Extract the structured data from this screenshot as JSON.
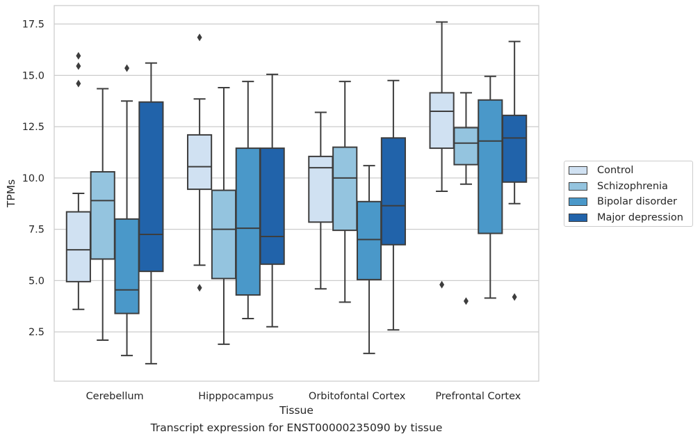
{
  "chart_data": {
    "type": "box",
    "title": "",
    "caption": "Transcript expression for ENST00000235090 by tissue",
    "xlabel": "Tissue",
    "ylabel": "TPMs",
    "ylim": [
      0.1,
      18.4
    ],
    "yticks": [
      "2.5",
      "5.0",
      "7.5",
      "10.0",
      "12.5",
      "15.0",
      "17.5"
    ],
    "ytick_values": [
      2.5,
      5.0,
      7.5,
      10.0,
      12.5,
      15.0,
      17.5
    ],
    "grid": "horizontal",
    "legend_position": "right",
    "categories": [
      "Cerebellum",
      "Hipppocampus",
      "Orbitofontal Cortex",
      "Prefrontal Cortex"
    ],
    "series": [
      {
        "name": "Control",
        "color": "#d0e1f2",
        "boxes": [
          {
            "whislo": 3.6,
            "q1": 4.95,
            "med": 6.5,
            "q3": 8.35,
            "whishi": 9.25,
            "fliers": [
              14.6,
              15.45,
              15.95
            ]
          },
          {
            "whislo": 5.75,
            "q1": 9.45,
            "med": 10.55,
            "q3": 12.1,
            "whishi": 13.85,
            "fliers": [
              4.65,
              16.85
            ]
          },
          {
            "whislo": 4.6,
            "q1": 7.85,
            "med": 10.5,
            "q3": 11.05,
            "whishi": 13.2,
            "fliers": []
          },
          {
            "whislo": 9.35,
            "q1": 11.45,
            "med": 13.25,
            "q3": 14.15,
            "whishi": 17.6,
            "fliers": [
              4.8
            ]
          }
        ]
      },
      {
        "name": "Schizophrenia",
        "color": "#94c4df",
        "boxes": [
          {
            "whislo": 2.1,
            "q1": 6.05,
            "med": 8.9,
            "q3": 10.3,
            "whishi": 14.35,
            "fliers": []
          },
          {
            "whislo": 1.9,
            "q1": 5.1,
            "med": 7.5,
            "q3": 9.4,
            "whishi": 14.4,
            "fliers": []
          },
          {
            "whislo": 3.95,
            "q1": 7.45,
            "med": 10.0,
            "q3": 11.5,
            "whishi": 14.7,
            "fliers": []
          },
          {
            "whislo": 9.7,
            "q1": 10.65,
            "med": 11.7,
            "q3": 12.45,
            "whishi": 14.15,
            "fliers": [
              4.0
            ]
          }
        ]
      },
      {
        "name": "Bipolar disorder",
        "color": "#4a98c9",
        "boxes": [
          {
            "whislo": 1.35,
            "q1": 3.4,
            "med": 4.55,
            "q3": 8.0,
            "whishi": 13.75,
            "fliers": [
              15.35
            ]
          },
          {
            "whislo": 3.15,
            "q1": 4.3,
            "med": 7.55,
            "q3": 11.45,
            "whishi": 14.7,
            "fliers": []
          },
          {
            "whislo": 1.45,
            "q1": 5.05,
            "med": 7.0,
            "q3": 8.85,
            "whishi": 10.6,
            "fliers": []
          },
          {
            "whislo": 4.15,
            "q1": 7.3,
            "med": 11.8,
            "q3": 13.8,
            "whishi": 14.95,
            "fliers": []
          }
        ]
      },
      {
        "name": "Major depression",
        "color": "#2163aa",
        "boxes": [
          {
            "whislo": 0.95,
            "q1": 5.45,
            "med": 7.25,
            "q3": 13.7,
            "whishi": 15.6,
            "fliers": []
          },
          {
            "whislo": 2.75,
            "q1": 5.8,
            "med": 7.15,
            "q3": 11.45,
            "whishi": 15.05,
            "fliers": []
          },
          {
            "whislo": 2.6,
            "q1": 6.75,
            "med": 8.65,
            "q3": 11.95,
            "whishi": 14.75,
            "fliers": []
          },
          {
            "whislo": 8.75,
            "q1": 9.8,
            "med": 11.95,
            "q3": 13.05,
            "whishi": 16.65,
            "fliers": [
              4.2
            ]
          }
        ]
      }
    ]
  }
}
